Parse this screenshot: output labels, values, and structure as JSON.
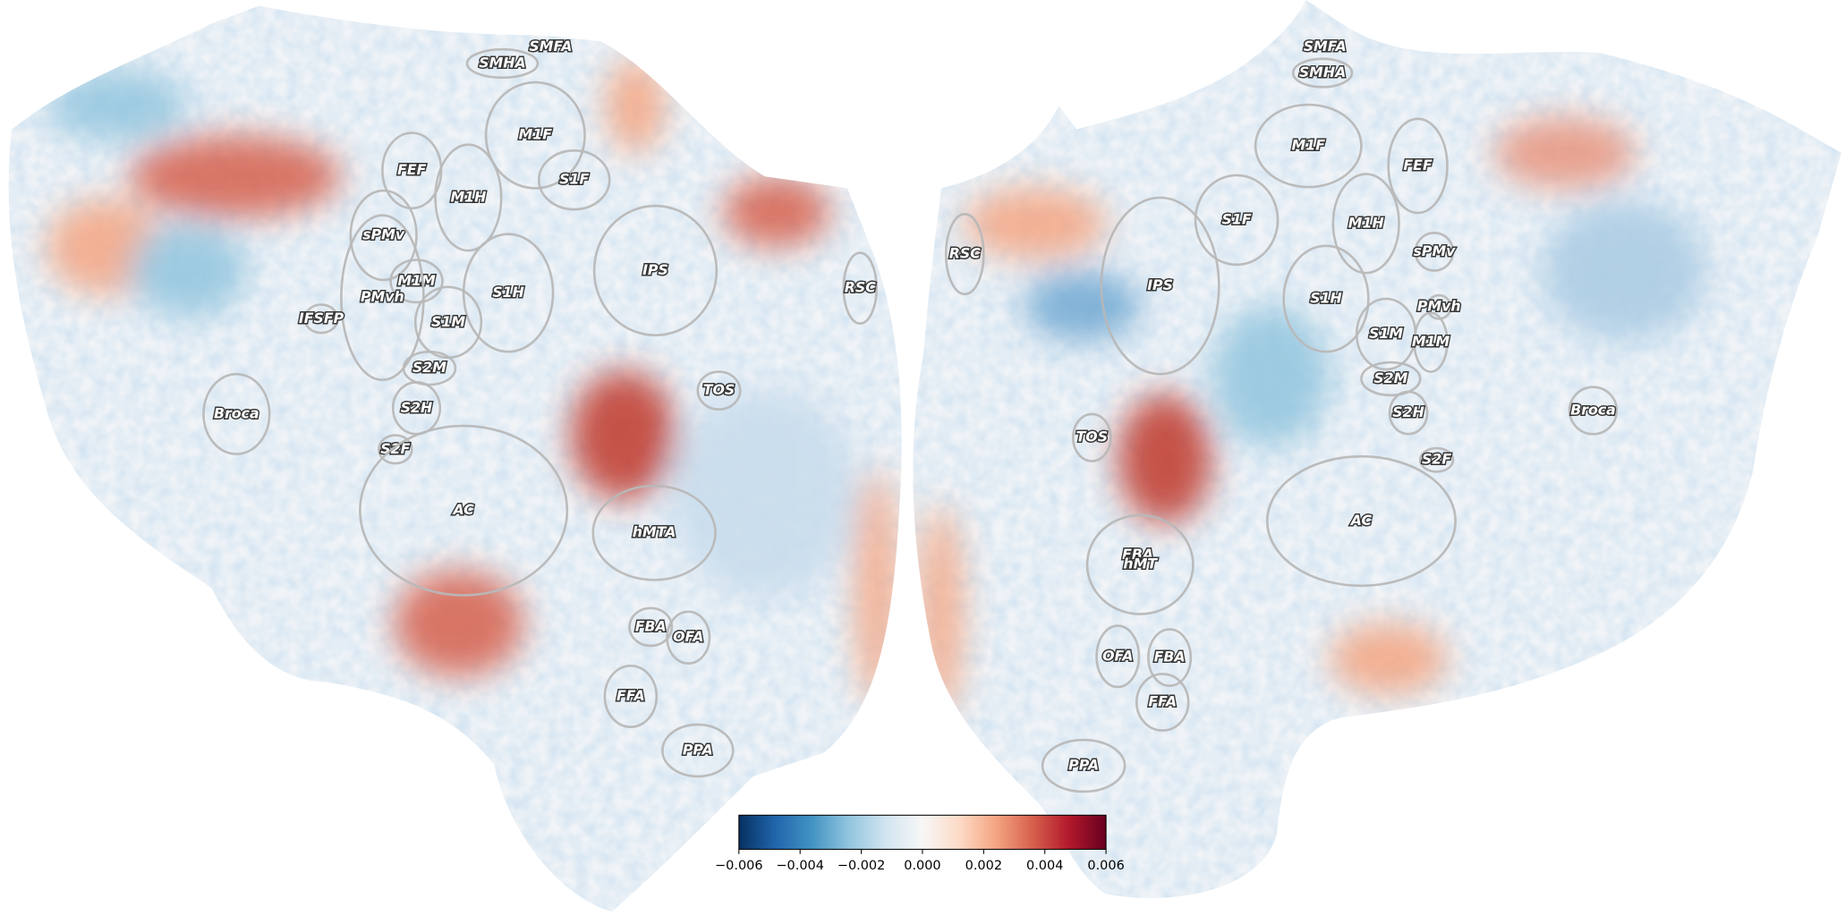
{
  "left_hemisphere": {
    "rois": [
      "SMFA",
      "SMHA",
      "M1F",
      "S1F",
      "FEF",
      "M1H",
      "sPMv",
      "M1M",
      "PMvh",
      "IPS",
      "RSC",
      "IFSFP",
      "S1H",
      "S1M",
      "S2M",
      "TOS",
      "Broca",
      "S2H",
      "S2F",
      "AC",
      "hMTA",
      "FBA",
      "OFA",
      "FFA",
      "PPA"
    ]
  },
  "right_hemisphere": {
    "rois": [
      "SMFA",
      "SMHA",
      "M1F",
      "FEF",
      "S1F",
      "M1H",
      "RSC",
      "sPMv",
      "IPS",
      "S1H",
      "PMvh",
      "S1M",
      "M1M",
      "S2M",
      "Broca",
      "S2H",
      "TOS",
      "S2F",
      "AC",
      "EBA",
      "hMT",
      "OFA",
      "FBA",
      "FFA",
      "PPA"
    ]
  },
  "colorbar": {
    "colormap": [
      "#053061",
      "#2166ac",
      "#4393c3",
      "#92c5de",
      "#d1e5f0",
      "#f7f7f7",
      "#fddbc7",
      "#f4a582",
      "#d6604d",
      "#b2182b",
      "#67001f"
    ],
    "lim": [
      -0.006,
      0.006
    ],
    "ticks": [
      {
        "value": -0.006,
        "label": "−0.006"
      },
      {
        "value": -0.004,
        "label": "−0.004"
      },
      {
        "value": -0.002,
        "label": "−0.002"
      },
      {
        "value": 0,
        "label": "0.000"
      },
      0.002,
      0.004,
      0.006
    ]
  }
}
